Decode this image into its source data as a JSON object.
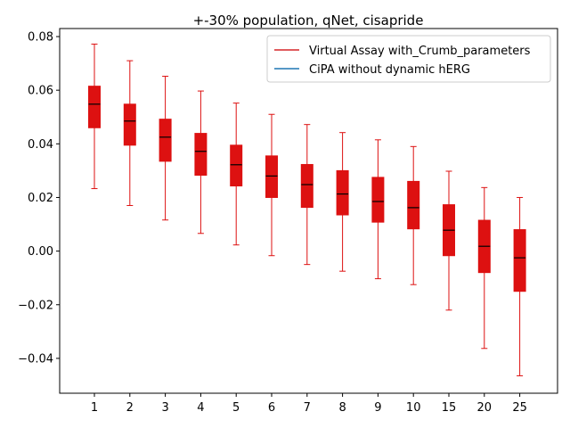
{
  "chart_data": {
    "type": "box",
    "title": "+-30% population, qNet, cisapride",
    "xlabel": "",
    "ylabel": "",
    "categories": [
      "1",
      "2",
      "3",
      "4",
      "5",
      "6",
      "7",
      "8",
      "9",
      "10",
      "15",
      "20",
      "25"
    ],
    "ylim": [
      -0.053,
      0.083
    ],
    "yticks": [
      -0.04,
      -0.02,
      0.0,
      0.02,
      0.04,
      0.06,
      0.08
    ],
    "ytick_labels": [
      "−0.04",
      "−0.02",
      "0.00",
      "0.02",
      "0.04",
      "0.06",
      "0.08"
    ],
    "grid": false,
    "legend_position": "top-right",
    "legend": [
      {
        "label": "Virtual Assay with_Crumb_parameters",
        "color": "#d62728"
      },
      {
        "label": "CiPA without dynamic hERG",
        "color": "#1f77b4"
      }
    ],
    "series": [
      {
        "name": "Virtual Assay with_Crumb_parameters",
        "color": "#dd1111",
        "boxes": [
          {
            "whisker_low": 0.0233,
            "q1": 0.046,
            "median": 0.0548,
            "q3": 0.0615,
            "whisker_high": 0.0772
          },
          {
            "whisker_low": 0.017,
            "q1": 0.0395,
            "median": 0.0485,
            "q3": 0.0548,
            "whisker_high": 0.071
          },
          {
            "whisker_low": 0.0116,
            "q1": 0.0335,
            "median": 0.0425,
            "q3": 0.0492,
            "whisker_high": 0.0652
          },
          {
            "whisker_low": 0.0066,
            "q1": 0.0283,
            "median": 0.0372,
            "q3": 0.0439,
            "whisker_high": 0.0597
          },
          {
            "whisker_low": 0.0023,
            "q1": 0.0243,
            "median": 0.0322,
            "q3": 0.0395,
            "whisker_high": 0.0552
          },
          {
            "whisker_low": -0.0017,
            "q1": 0.02,
            "median": 0.028,
            "q3": 0.0355,
            "whisker_high": 0.051
          },
          {
            "whisker_low": -0.005,
            "q1": 0.0163,
            "median": 0.0248,
            "q3": 0.0323,
            "whisker_high": 0.0472
          },
          {
            "whisker_low": -0.0075,
            "q1": 0.0135,
            "median": 0.0213,
            "q3": 0.03,
            "whisker_high": 0.0442
          },
          {
            "whisker_low": -0.0103,
            "q1": 0.0108,
            "median": 0.0185,
            "q3": 0.0275,
            "whisker_high": 0.0415
          },
          {
            "whisker_low": -0.0125,
            "q1": 0.0083,
            "median": 0.0162,
            "q3": 0.026,
            "whisker_high": 0.039
          },
          {
            "whisker_low": -0.022,
            "q1": -0.0017,
            "median": 0.0078,
            "q3": 0.0173,
            "whisker_high": 0.0298
          },
          {
            "whisker_low": -0.0363,
            "q1": -0.008,
            "median": 0.0018,
            "q3": 0.0115,
            "whisker_high": 0.0237
          },
          {
            "whisker_low": -0.0465,
            "q1": -0.015,
            "median": -0.0025,
            "q3": 0.008,
            "whisker_high": 0.02
          }
        ]
      }
    ]
  }
}
